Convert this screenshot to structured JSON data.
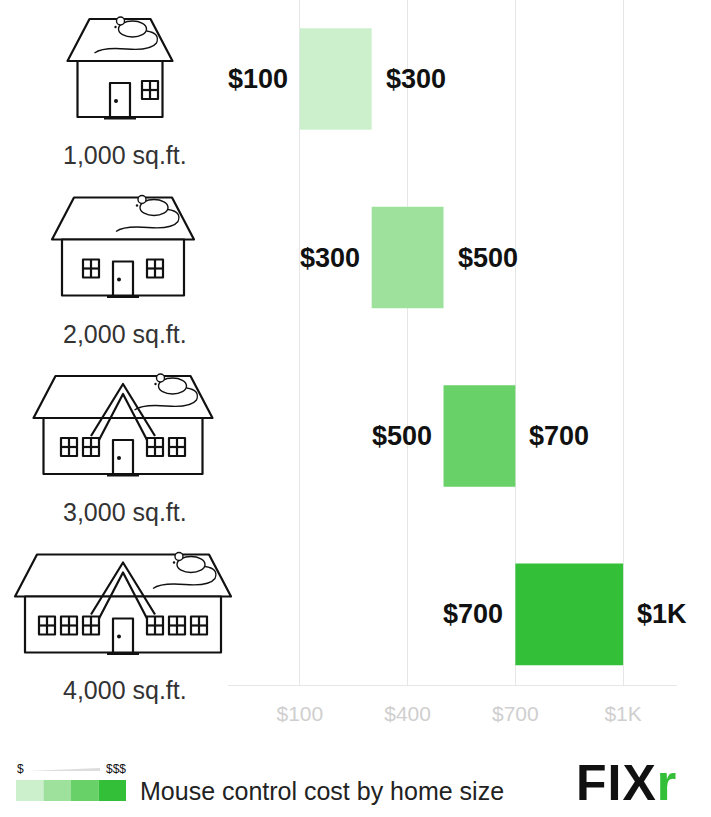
{
  "chart_data": {
    "type": "range_bar",
    "orientation": "horizontal",
    "title": "Mouse control cost by home size",
    "categories": [
      "1,000 sq.ft.",
      "2,000 sq.ft.",
      "3,000 sq.ft.",
      "4,000 sq.ft."
    ],
    "values": [
      [
        100,
        300
      ],
      [
        300,
        500
      ],
      [
        500,
        700
      ],
      [
        700,
        1000
      ]
    ],
    "value_labels": [
      [
        "$100",
        "$300"
      ],
      [
        "$300",
        "$500"
      ],
      [
        "$500",
        "$700"
      ],
      [
        "$700",
        "$1K"
      ]
    ],
    "colors": [
      "#ccf0cc",
      "#9de19d",
      "#68d268",
      "#33bf37"
    ],
    "xlim": [
      -100,
      1150
    ],
    "xticks": [
      {
        "value": 100,
        "label": "$100"
      },
      {
        "value": 400,
        "label": "$400"
      },
      {
        "value": 700,
        "label": "$700"
      },
      {
        "value": 1000,
        "label": "$1K"
      }
    ],
    "grid": true,
    "data_labels": true,
    "tick_labels": "x",
    "scale_labels": [
      "$",
      "$$$"
    ],
    "logo": "FIXr"
  }
}
